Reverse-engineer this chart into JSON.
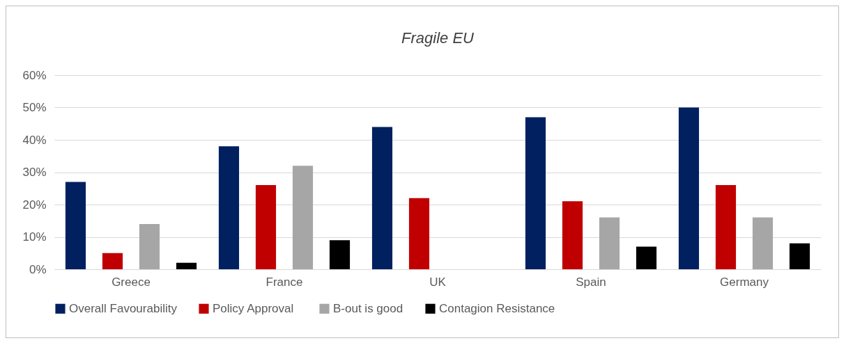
{
  "chart_data": {
    "type": "bar",
    "title": "Fragile EU",
    "categories": [
      "Greece",
      "France",
      "UK",
      "Spain",
      "Germany"
    ],
    "series": [
      {
        "name": "Overall Favourability",
        "color": "#002060",
        "values": [
          27,
          38,
          44,
          47,
          50
        ]
      },
      {
        "name": "Policy  Approval",
        "color": "#c00000",
        "values": [
          5,
          26,
          22,
          21,
          26
        ]
      },
      {
        "name": "B-out is good",
        "color": "#a6a6a6",
        "values": [
          14,
          32,
          null,
          16,
          16
        ]
      },
      {
        "name": "Contagion  Resistance",
        "color": "#000000",
        "values": [
          2,
          9,
          null,
          7,
          8
        ]
      }
    ],
    "ylim": [
      0,
      60
    ],
    "yticks": [
      {
        "value": 0,
        "label": "0%"
      },
      {
        "value": 10,
        "label": "10%"
      },
      {
        "value": 20,
        "label": "20%"
      },
      {
        "value": 30,
        "label": "30%"
      },
      {
        "value": 40,
        "label": "40%"
      },
      {
        "value": 50,
        "label": "50%"
      },
      {
        "value": 60,
        "label": "60%"
      }
    ],
    "grid": "y",
    "legend": "bottom"
  }
}
